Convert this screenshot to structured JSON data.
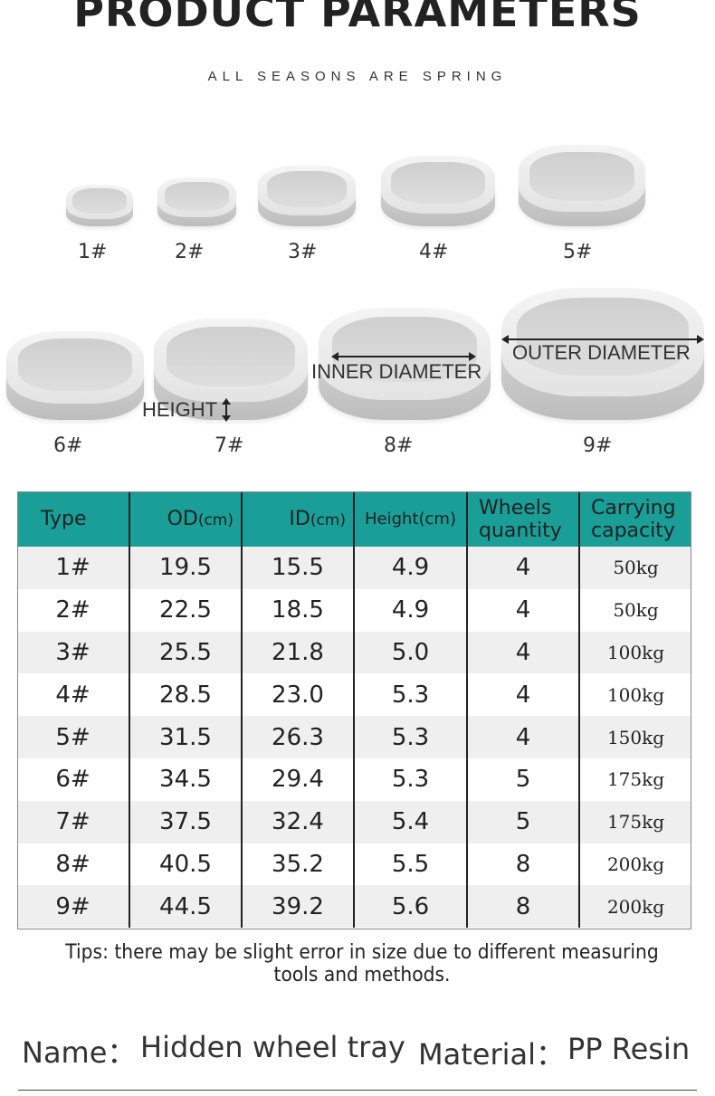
{
  "header": {
    "title": "PRODUCT PARAMETERS",
    "subtitle": "ALL SEASONS ARE SPRING"
  },
  "trays": [
    {
      "label": "1#"
    },
    {
      "label": "2#"
    },
    {
      "label": "3#"
    },
    {
      "label": "4#"
    },
    {
      "label": "5#"
    },
    {
      "label": "6#"
    },
    {
      "label": "7#"
    },
    {
      "label": "8#"
    },
    {
      "label": "9#"
    }
  ],
  "dimensions": {
    "height": "HEIGHT",
    "inner_diameter": "INNER DIAMETER",
    "outer_diameter": "OUTER DIAMETER"
  },
  "table": {
    "headers": {
      "type": "Type",
      "od": "OD",
      "od_unit": "(cm)",
      "id": "ID",
      "id_unit": "(cm)",
      "height": "Height(cm)",
      "wheels_1": "Wheels",
      "wheels_2": "quantity",
      "capacity_1": "Carrying",
      "capacity_2": "capacity"
    },
    "rows": [
      {
        "type": "1#",
        "od": "19.5",
        "id": "15.5",
        "height": "4.9",
        "wheels": "4",
        "capacity": "50kg"
      },
      {
        "type": "2#",
        "od": "22.5",
        "id": "18.5",
        "height": "4.9",
        "wheels": "4",
        "capacity": "50kg"
      },
      {
        "type": "3#",
        "od": "25.5",
        "id": "21.8",
        "height": "5.0",
        "wheels": "4",
        "capacity": "100kg"
      },
      {
        "type": "4#",
        "od": "28.5",
        "id": "23.0",
        "height": "5.3",
        "wheels": "4",
        "capacity": "100kg"
      },
      {
        "type": "5#",
        "od": "31.5",
        "id": "26.3",
        "height": "5.3",
        "wheels": "4",
        "capacity": "150kg"
      },
      {
        "type": "6#",
        "od": "34.5",
        "id": "29.4",
        "height": "5.3",
        "wheels": "5",
        "capacity": "175kg"
      },
      {
        "type": "7#",
        "od": "37.5",
        "id": "32.4",
        "height": "5.4",
        "wheels": "5",
        "capacity": "175kg"
      },
      {
        "type": "8#",
        "od": "40.5",
        "id": "35.2",
        "height": "5.5",
        "wheels": "8",
        "capacity": "200kg"
      },
      {
        "type": "9#",
        "od": "44.5",
        "id": "39.2",
        "height": "5.6",
        "wheels": "8",
        "capacity": "200kg"
      }
    ]
  },
  "tips": "Tips: there may be slight error in size due to different measuring tools and methods.",
  "info": {
    "name_label": "Name：",
    "name_value": "Hidden wheel tray",
    "material_label": "Material：",
    "material_value": "PP Resin"
  },
  "colors": {
    "header_bg": "#1a9e98",
    "row_alt": "#efefef",
    "tray": "#e3e3e3"
  }
}
